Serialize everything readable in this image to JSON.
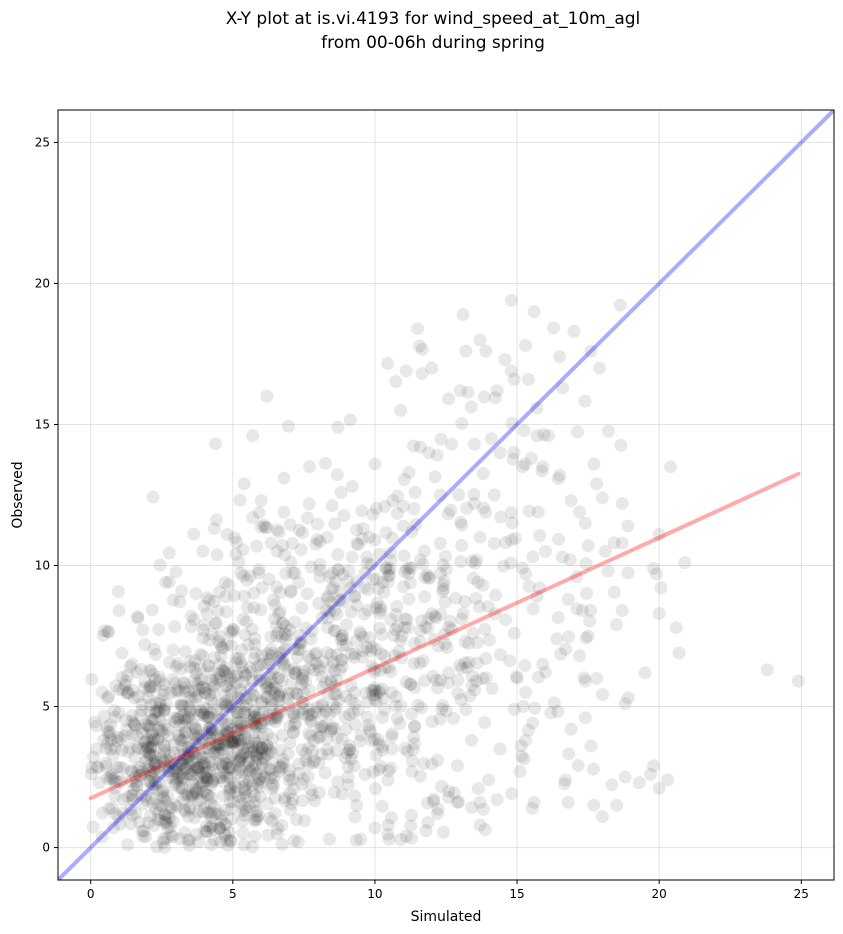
{
  "chart_data": {
    "type": "scatter",
    "title_line1": "X-Y plot at is.vi.4193 for wind_speed_at_10m_agl",
    "title_line2": "from 00-06h during spring",
    "xlabel": "Simulated",
    "ylabel": "Observed",
    "xlim": [
      -1.15,
      26.15
    ],
    "ylim": [
      -1.15,
      26.15
    ],
    "xticks": [
      0,
      5,
      10,
      15,
      20,
      25
    ],
    "yticks": [
      0,
      5,
      10,
      15,
      20,
      25
    ],
    "grid": true,
    "point_color": "#000000",
    "point_alpha": 0.09,
    "one_to_one_line": {
      "x": [
        -1.15,
        26.15
      ],
      "y": [
        -1.15,
        26.15
      ],
      "color": "#0000ff"
    },
    "regression_line": {
      "x": [
        0,
        24.9
      ],
      "y": [
        1.75,
        13.25
      ],
      "color": "#ff0000"
    },
    "points": [
      [
        23.8,
        6.3
      ],
      [
        24.9,
        5.9
      ],
      [
        20.4,
        13.5
      ],
      [
        20.9,
        10.1
      ],
      [
        20.6,
        7.8
      ],
      [
        20.7,
        6.9
      ],
      [
        20.0,
        11.1
      ],
      [
        20.0,
        8.3
      ],
      [
        20.0,
        2.1
      ],
      [
        20.3,
        2.4
      ],
      [
        19.8,
        9.9
      ],
      [
        19.9,
        9.7
      ],
      [
        19.8,
        2.9
      ],
      [
        19.5,
        6.2
      ],
      [
        19.7,
        2.6
      ],
      [
        19.3,
        2.3
      ],
      [
        18.7,
        12.2
      ],
      [
        18.9,
        11.4
      ],
      [
        18.7,
        10.8
      ],
      [
        18.2,
        9.8
      ],
      [
        18.7,
        8.4
      ],
      [
        18.5,
        7.9
      ],
      [
        18.8,
        5.1
      ],
      [
        18.8,
        2.5
      ],
      [
        18.5,
        1.5
      ],
      [
        18.0,
        1.1
      ],
      [
        17.7,
        1.5
      ],
      [
        17.9,
        17.0
      ],
      [
        17.6,
        17.6
      ],
      [
        17.0,
        18.3
      ],
      [
        16.5,
        17.4
      ],
      [
        15.6,
        19.0
      ],
      [
        14.8,
        19.4
      ],
      [
        15.3,
        17.8
      ],
      [
        14.8,
        16.9
      ],
      [
        13.7,
        18.0
      ],
      [
        13.1,
        18.9
      ],
      [
        13.2,
        17.6
      ],
      [
        11.5,
        18.4
      ],
      [
        12.0,
        17.0
      ],
      [
        11.1,
        16.9
      ],
      [
        10.9,
        15.5
      ],
      [
        13.0,
        16.2
      ],
      [
        14.3,
        16.2
      ],
      [
        14.9,
        16.6
      ],
      [
        15.4,
        16.6
      ],
      [
        16.6,
        16.3
      ],
      [
        15.7,
        14.6
      ],
      [
        16.1,
        14.6
      ],
      [
        14.1,
        14.5
      ],
      [
        11.6,
        14.2
      ],
      [
        11.9,
        14.0
      ],
      [
        12.7,
        14.3
      ],
      [
        13.5,
        14.3
      ],
      [
        14.4,
        14.0
      ],
      [
        15.2,
        13.5
      ],
      [
        15.5,
        13.8
      ],
      [
        15.9,
        13.5
      ],
      [
        16.5,
        13.2
      ],
      [
        17.7,
        13.6
      ],
      [
        17.8,
        12.9
      ],
      [
        18.0,
        12.4
      ],
      [
        16.9,
        12.3
      ],
      [
        17.2,
        11.9
      ],
      [
        17.4,
        11.5
      ],
      [
        17.5,
        10.7
      ],
      [
        18.1,
        10.5
      ],
      [
        16.0,
        10.5
      ],
      [
        16.6,
        10.3
      ],
      [
        17.1,
        9.6
      ],
      [
        16.8,
        8.8
      ],
      [
        17.3,
        8.4
      ],
      [
        17.5,
        7.5
      ],
      [
        17.2,
        6.8
      ],
      [
        17.8,
        6.0
      ],
      [
        17.4,
        5.9
      ],
      [
        16.9,
        4.2
      ],
      [
        17.4,
        4.6
      ],
      [
        17.6,
        3.6
      ],
      [
        16.7,
        2.4
      ],
      [
        16.8,
        1.6
      ],
      [
        15.6,
        1.6
      ],
      [
        14.3,
        1.7
      ],
      [
        14.0,
        2.4
      ],
      [
        13.7,
        1.6
      ],
      [
        12.9,
        1.6
      ],
      [
        12.6,
        2.0
      ],
      [
        12.2,
        1.2
      ],
      [
        11.8,
        0.6
      ],
      [
        11.1,
        0.4
      ],
      [
        10.5,
        0.3
      ],
      [
        10.0,
        0.7
      ],
      [
        9.5,
        0.3
      ],
      [
        13.7,
        0.8
      ],
      [
        15.1,
        2.7
      ],
      [
        15.3,
        3.8
      ],
      [
        14.9,
        4.9
      ],
      [
        15.3,
        5.5
      ],
      [
        15.9,
        6.5
      ],
      [
        16.4,
        7.4
      ],
      [
        15.7,
        8.9
      ],
      [
        15.3,
        9.7
      ],
      [
        14.8,
        10.9
      ],
      [
        13.7,
        11.0
      ],
      [
        13.5,
        12.2
      ],
      [
        12.3,
        12.5
      ],
      [
        11.0,
        12.1
      ],
      [
        11.2,
        13.3
      ],
      [
        10.0,
        13.6
      ],
      [
        9.2,
        12.8
      ],
      [
        8.7,
        14.9
      ],
      [
        7.7,
        13.5
      ],
      [
        6.8,
        13.1
      ],
      [
        6.2,
        16.0
      ],
      [
        5.7,
        14.6
      ],
      [
        5.7,
        11.7
      ],
      [
        6.0,
        12.3
      ],
      [
        5.4,
        12.9
      ],
      [
        4.8,
        11.1
      ],
      [
        3.7,
        9.0
      ],
      [
        3.2,
        9.1
      ],
      [
        2.9,
        7.0
      ],
      [
        1.9,
        7.2
      ],
      [
        1.3,
        6.1
      ],
      [
        1.0,
        5.6
      ],
      [
        0.6,
        4.1
      ],
      [
        0.1,
        3.2
      ],
      [
        0.3,
        2.3
      ],
      [
        0.8,
        0.7
      ],
      [
        1.3,
        0.1
      ],
      [
        2.6,
        0.0
      ],
      [
        3.8,
        0.2
      ],
      [
        5.4,
        0.1
      ],
      [
        7.3,
        0.2
      ],
      [
        8.4,
        0.3
      ],
      [
        12.2,
        3.1
      ],
      [
        11.4,
        4.3
      ],
      [
        10.3,
        5.3
      ],
      [
        12.6,
        6.2
      ],
      [
        13.9,
        6.7
      ],
      [
        13.1,
        8.3
      ],
      [
        12.4,
        9.3
      ],
      [
        11.6,
        10.2
      ],
      [
        11.0,
        11.4
      ],
      [
        9.8,
        11.0
      ],
      [
        9.2,
        10.3
      ],
      [
        8.4,
        9.6
      ],
      [
        9.0,
        7.9
      ],
      [
        9.9,
        7.1
      ],
      [
        10.7,
        6.8
      ],
      [
        11.6,
        7.3
      ],
      [
        12.1,
        8.2
      ],
      [
        13.2,
        4.9
      ],
      [
        13.4,
        3.8
      ],
      [
        14.4,
        3.5
      ],
      [
        12.9,
        2.9
      ],
      [
        11.3,
        2.7
      ],
      [
        10.6,
        3.5
      ],
      [
        9.8,
        4.2
      ],
      [
        9.3,
        5.1
      ]
    ],
    "clusters": [
      {
        "center": [
          3.5,
          3.2
        ],
        "spread": [
          1.9,
          1.9
        ],
        "count": 800
      },
      {
        "center": [
          6.6,
          5.9
        ],
        "spread": [
          2.1,
          2.6
        ],
        "count": 450
      },
      {
        "center": [
          10.4,
          7.3
        ],
        "spread": [
          2.2,
          3.2
        ],
        "count": 280
      },
      {
        "center": [
          14.0,
          8.7
        ],
        "spread": [
          2.6,
          3.9
        ],
        "count": 150
      }
    ]
  }
}
